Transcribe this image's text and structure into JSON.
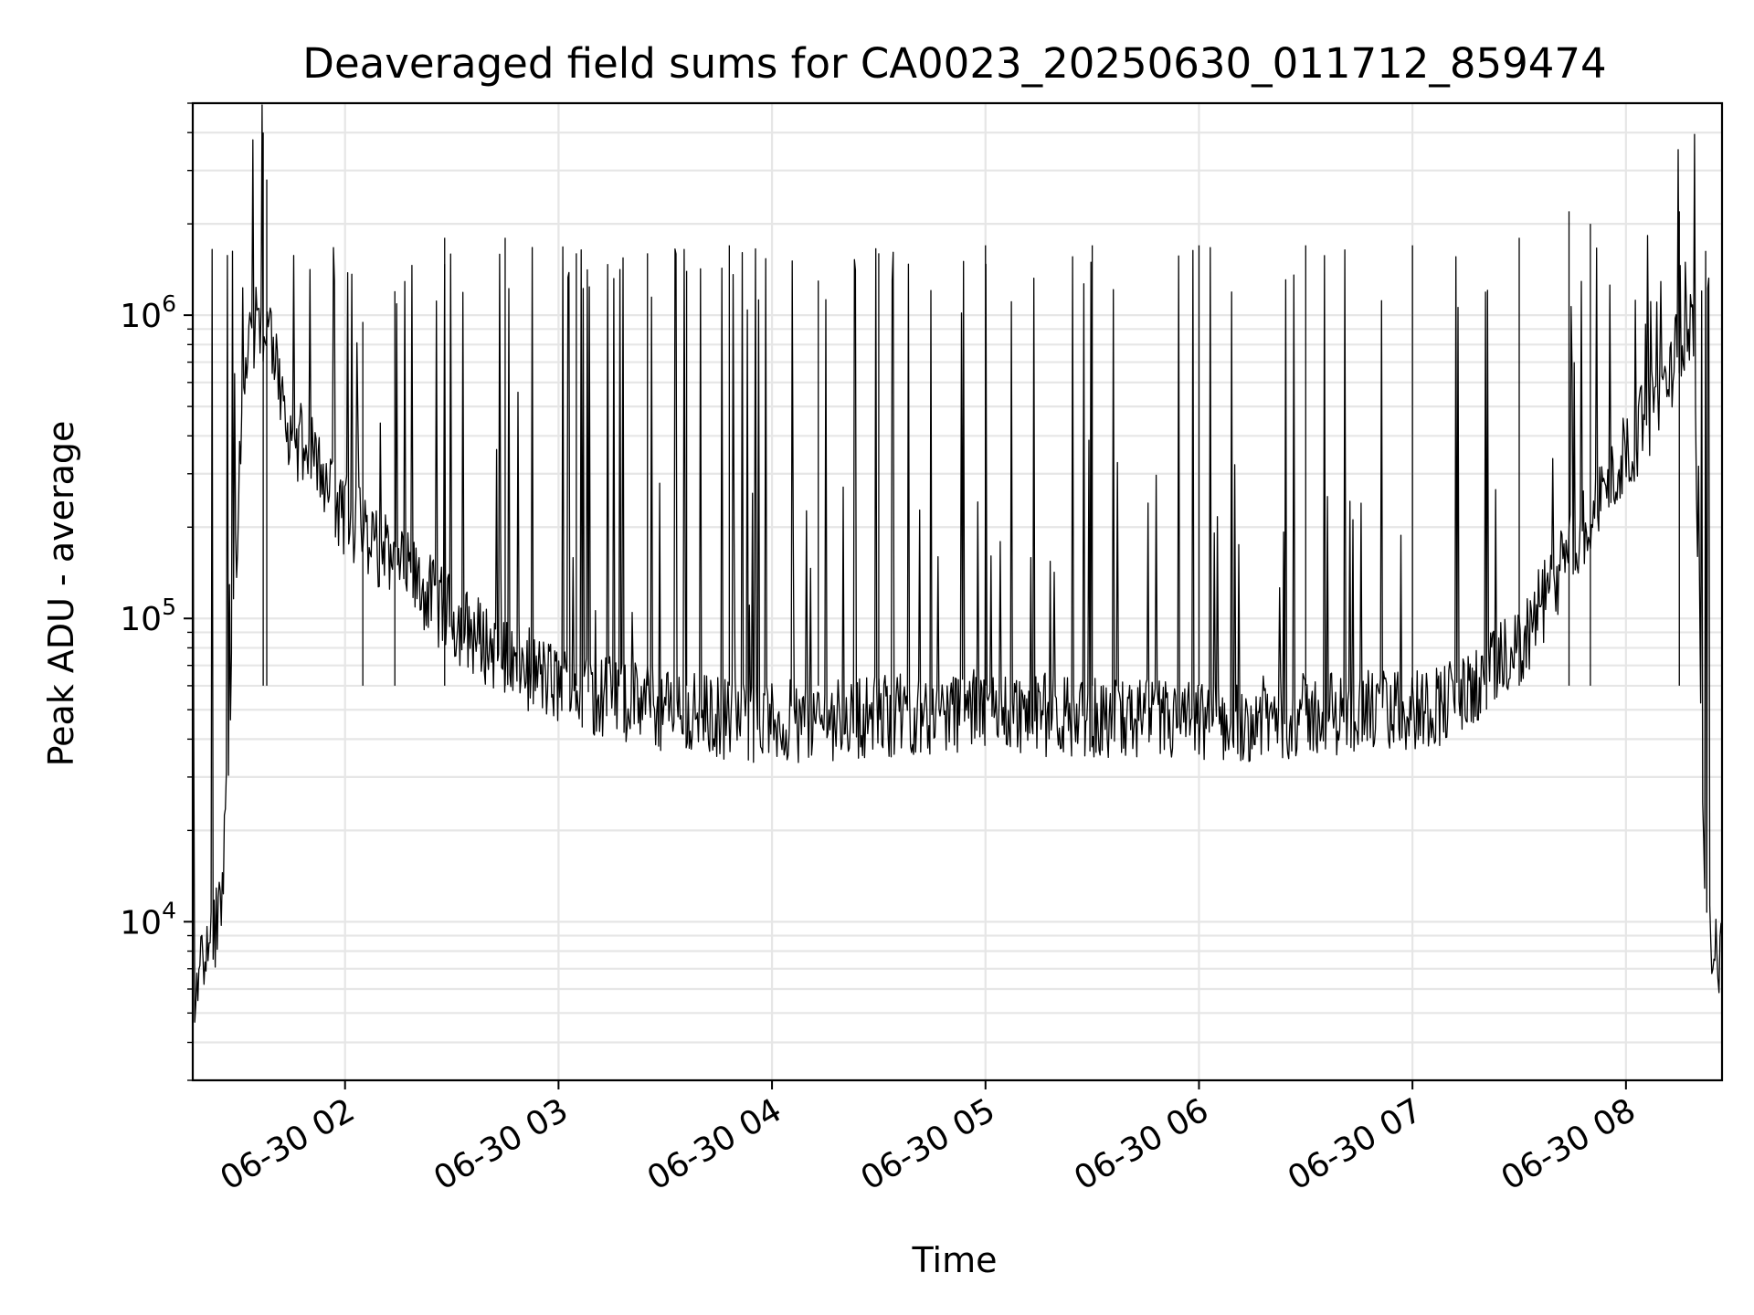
{
  "chart_data": {
    "type": "line",
    "title": "Deaveraged field sums for CA0023_20250630_011712_859474",
    "xlabel": "Time",
    "ylabel": "Peak ADU - average",
    "x_range": [
      "2025-06-30 01:17:12",
      "2025-06-30 08:27:00"
    ],
    "y_scale": "log",
    "ylim": [
      3000,
      5000000
    ],
    "grid": true,
    "colors": {
      "line": "#000000",
      "grid": "#e6e6e6",
      "background": "#ffffff"
    },
    "x_ticks": [
      {
        "value": "2025-06-30 02:00",
        "label": "06-30 02"
      },
      {
        "value": "2025-06-30 03:00",
        "label": "06-30 03"
      },
      {
        "value": "2025-06-30 04:00",
        "label": "06-30 04"
      },
      {
        "value": "2025-06-30 05:00",
        "label": "06-30 05"
      },
      {
        "value": "2025-06-30 06:00",
        "label": "06-30 06"
      },
      {
        "value": "2025-06-30 07:00",
        "label": "06-30 07"
      },
      {
        "value": "2025-06-30 08:00",
        "label": "06-30 08"
      }
    ],
    "y_ticks": [
      {
        "value": 10000,
        "base": "10",
        "exp": "4"
      },
      {
        "value": 100000,
        "base": "10",
        "exp": "5"
      },
      {
        "value": 1000000,
        "base": "10",
        "exp": "6"
      }
    ],
    "series": [
      {
        "x": [
          "2025-06-30 01:17",
          "2025-06-30 01:22",
          "2025-06-30 01:25",
          "2025-06-30 01:27",
          "2025-06-30 01:30",
          "2025-06-30 01:33",
          "2025-06-30 01:36",
          "2025-06-30 01:40",
          "2025-06-30 01:45",
          "2025-06-30 01:50",
          "2025-06-30 02:00",
          "2025-06-30 02:15",
          "2025-06-30 02:30",
          "2025-06-30 02:45",
          "2025-06-30 03:00",
          "2025-06-30 03:30",
          "2025-06-30 04:00",
          "2025-06-30 04:30",
          "2025-06-30 05:00",
          "2025-06-30 05:30",
          "2025-06-30 06:00",
          "2025-06-30 06:30",
          "2025-06-30 07:00",
          "2025-06-30 07:15",
          "2025-06-30 07:30",
          "2025-06-30 07:45",
          "2025-06-30 08:00",
          "2025-06-30 08:10",
          "2025-06-30 08:15",
          "2025-06-30 08:19",
          "2025-06-30 08:22",
          "2025-06-30 08:24",
          "2025-06-30 08:27"
        ],
        "values": [
          5500,
          9000,
          10000,
          30000,
          250000,
          800000,
          1000000,
          700000,
          400000,
          350000,
          220000,
          150000,
          100000,
          75000,
          60000,
          50000,
          45000,
          48000,
          50000,
          47000,
          45000,
          48000,
          50000,
          55000,
          80000,
          170000,
          350000,
          550000,
          800000,
          1000000,
          15000,
          9000,
          7000
        ]
      }
    ],
    "spikes": {
      "x": [
        "2025-06-30 01:37",
        "2025-06-30 01:38",
        "2025-06-30 02:05",
        "2025-06-30 02:14",
        "2025-06-30 02:28",
        "2025-06-30 02:45",
        "2025-06-30 03:05",
        "2025-06-30 03:25",
        "2025-06-30 03:36",
        "2025-06-30 03:48",
        "2025-06-30 04:13",
        "2025-06-30 04:30",
        "2025-06-30 05:00",
        "2025-06-30 05:30",
        "2025-06-30 06:00",
        "2025-06-30 06:30",
        "2025-06-30 07:00",
        "2025-06-30 07:30",
        "2025-06-30 07:44",
        "2025-06-30 07:50",
        "2025-06-30 08:15"
      ],
      "values": [
        4000000,
        2800000,
        950000,
        1200000,
        1800000,
        1800000,
        1600000,
        1600000,
        1400000,
        1700000,
        1300000,
        1600000,
        1700000,
        1700000,
        1700000,
        1700000,
        1700000,
        1800000,
        2200000,
        2000000,
        2200000
      ]
    }
  }
}
